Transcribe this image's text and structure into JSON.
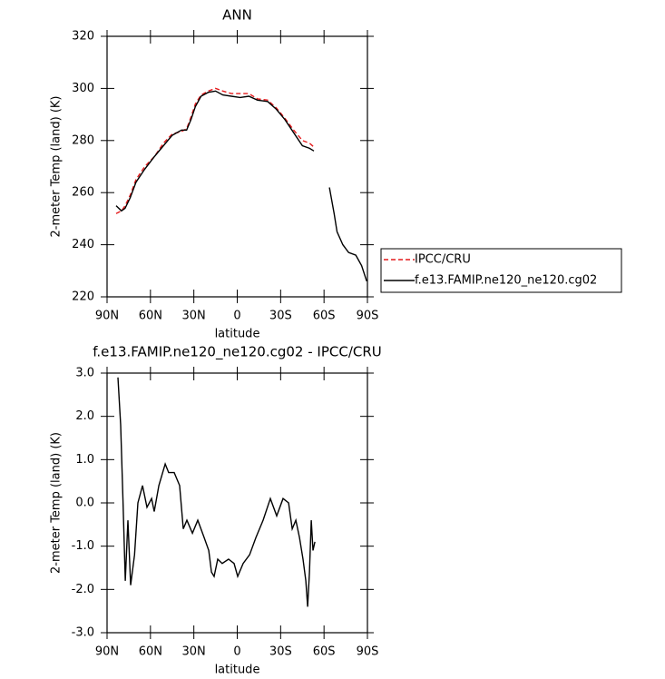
{
  "chart_data": [
    {
      "type": "line",
      "title": "ANN",
      "xlabel": "latitude",
      "ylabel": "2-meter Temp (land) (K)",
      "x": [
        83.7,
        80,
        77.5,
        74,
        70,
        64,
        57,
        51,
        45,
        38.5,
        35,
        32,
        29,
        25,
        20,
        15,
        10,
        4,
        -2,
        -8,
        -14,
        -21,
        -27,
        -33,
        -39,
        -45,
        -50,
        -53,
        -58,
        -63.7,
        -67,
        -69,
        -73,
        -77,
        -82,
        -86,
        -89.5
      ],
      "series": [
        {
          "name": "IPCC/CRU",
          "color": "#e41a1c",
          "dash": "dashed",
          "values": [
            252,
            253,
            255,
            259,
            265,
            270,
            274,
            279,
            282.5,
            283.5,
            284.5,
            289,
            294,
            297.5,
            299,
            300,
            299,
            298,
            298,
            298,
            296,
            295.5,
            292.5,
            288.5,
            284,
            280,
            279,
            277.5,
            null,
            null,
            null,
            null,
            null,
            null,
            null,
            null,
            null
          ]
        },
        {
          "name": "f.e13.FAMIP.ne120_ne120.cg02",
          "color": "#000000",
          "dash": "solid",
          "values": [
            255,
            253,
            254,
            258,
            264,
            269,
            274,
            278,
            282,
            284,
            284,
            288,
            293,
            297,
            298.5,
            299,
            297.5,
            297,
            296.5,
            297,
            295.5,
            295,
            292,
            288,
            283,
            278,
            277,
            276,
            null,
            262,
            252,
            245,
            240,
            237,
            236,
            232,
            226
          ]
        }
      ],
      "xlim": [
        90,
        -90
      ],
      "xticks": [
        {
          "value": 90,
          "label": "90N"
        },
        {
          "value": 60,
          "label": "60N"
        },
        {
          "value": 30,
          "label": "30N"
        },
        0,
        {
          "value": -30,
          "label": "30S"
        },
        {
          "value": -60,
          "label": "60S"
        },
        {
          "value": -90,
          "label": "90S"
        }
      ],
      "ylim": [
        220,
        320
      ],
      "yticks": [
        220,
        240,
        260,
        280,
        300,
        320
      ]
    },
    {
      "type": "line",
      "title": "f.e13.FAMIP.ne120_ne120.cg02 - IPCC/CRU",
      "xlabel": "latitude",
      "ylabel": "2-meter Temp (land) (K)",
      "x": [
        82.5,
        80.6,
        79,
        77.4,
        75.6,
        73.7,
        71,
        68.7,
        65.5,
        62.4,
        59.2,
        57.4,
        54.2,
        49.8,
        47.4,
        43.6,
        39.8,
        37.3,
        34.8,
        31,
        27.3,
        22.9,
        19.7,
        17.8,
        16,
        13.5,
        10.4,
        6,
        2.2,
        -0.3,
        -4.1,
        -8.5,
        -12.9,
        -17.9,
        -22.9,
        -27.3,
        -31.7,
        -35.5,
        -38,
        -40.5,
        -43,
        -45.5,
        -47.4,
        -48.7,
        -49.9,
        -51.2,
        -52.4,
        -53.7
      ],
      "series": [
        {
          "color": "#000000",
          "dash": "solid",
          "values": [
            2.9,
            1.8,
            0.1,
            -1.8,
            -0.4,
            -1.9,
            -1.2,
            0,
            0.4,
            -0.1,
            0.1,
            -0.2,
            0.4,
            0.9,
            0.7,
            0.7,
            0.4,
            -0.6,
            -0.4,
            -0.7,
            -0.4,
            -0.8,
            -1.1,
            -1.6,
            -1.7,
            -1.3,
            -1.4,
            -1.3,
            -1.4,
            -1.7,
            -1.4,
            -1.2,
            -0.8,
            -0.4,
            0.1,
            -0.3,
            0.1,
            0,
            -0.6,
            -0.4,
            -0.8,
            -1.3,
            -1.8,
            -2.4,
            -1.6,
            -0.4,
            -1.1,
            -0.9
          ]
        }
      ],
      "xlim": [
        90,
        -90
      ],
      "xticks": [
        {
          "value": 90,
          "label": "90N"
        },
        {
          "value": 60,
          "label": "60N"
        },
        {
          "value": 30,
          "label": "30N"
        },
        0,
        {
          "value": -30,
          "label": "30S"
        },
        {
          "value": -60,
          "label": "60S"
        },
        {
          "value": -90,
          "label": "90S"
        }
      ],
      "ylim": [
        -3,
        3
      ],
      "yticks": [
        {
          "value": -3,
          "label": "-3.0"
        },
        {
          "value": -2,
          "label": "-2.0"
        },
        {
          "value": -1,
          "label": "-1.0"
        },
        {
          "value": 0,
          "label": "0.0"
        },
        {
          "value": 1,
          "label": "1.0"
        },
        {
          "value": 2,
          "label": "2.0"
        },
        {
          "value": 3,
          "label": "3.0"
        }
      ]
    }
  ]
}
